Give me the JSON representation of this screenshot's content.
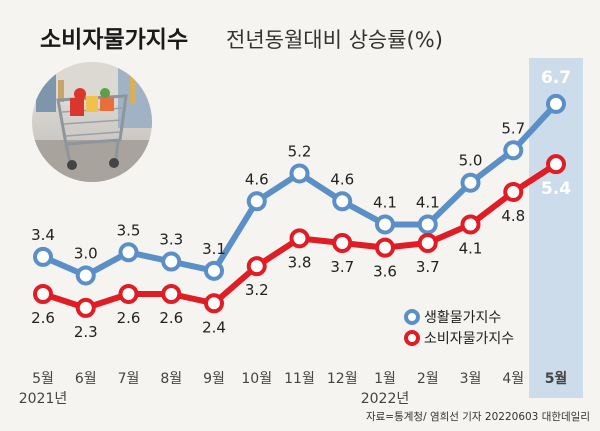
{
  "title": "소비자물가지수",
  "subtitle": "전년동월대비 상승률(%)",
  "source": "자료=통계청/ 염희선 기자 20220603 대한데일리",
  "chart_data": {
    "type": "line",
    "categories": [
      "5월",
      "6월",
      "7월",
      "8월",
      "9월",
      "10월",
      "11월",
      "12월",
      "1월",
      "2월",
      "3월",
      "4월",
      "5월"
    ],
    "year_labels": [
      "2021년",
      "2022년"
    ],
    "ylim": [
      1.5,
      7.0
    ],
    "grid": false,
    "legend_position": "bottom-right",
    "highlight_category": "5월",
    "series": [
      {
        "name": "생활물가지수",
        "color": "#5b8fc7",
        "values": [
          3.4,
          3.0,
          3.5,
          3.3,
          3.1,
          4.6,
          5.2,
          4.6,
          4.1,
          4.1,
          5.0,
          5.7,
          6.7
        ],
        "labels": [
          "3.4",
          "3.0",
          "3.5",
          "3.3",
          "3.1",
          "4.6",
          "5.2",
          "4.6",
          "4.1",
          "4.1",
          "5.0",
          "5.7",
          "6.7"
        ]
      },
      {
        "name": "소비자물가지수",
        "color": "#e01d25",
        "values": [
          2.6,
          2.3,
          2.6,
          2.6,
          2.4,
          3.2,
          3.8,
          3.7,
          3.6,
          3.7,
          4.1,
          4.8,
          5.4
        ],
        "labels": [
          "2.6",
          "2.3",
          "2.6",
          "2.6",
          "2.4",
          "3.2",
          "3.8",
          "3.7",
          "3.6",
          "3.7",
          "4.1",
          "4.8",
          "5.4"
        ]
      }
    ]
  }
}
